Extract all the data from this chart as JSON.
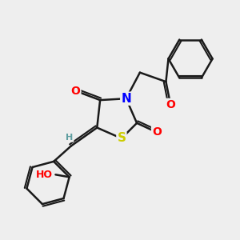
{
  "bg_color": "#eeeeee",
  "bond_color": "#1a1a1a",
  "bond_width": 1.8,
  "dbo": 0.07,
  "atom_colors": {
    "O": "#ff0000",
    "N": "#0000ff",
    "S": "#cccc00",
    "H": "#5f9ea0",
    "C": "#1a1a1a"
  },
  "font_size": 10,
  "fig_size": [
    3.0,
    3.0
  ],
  "dpi": 100
}
